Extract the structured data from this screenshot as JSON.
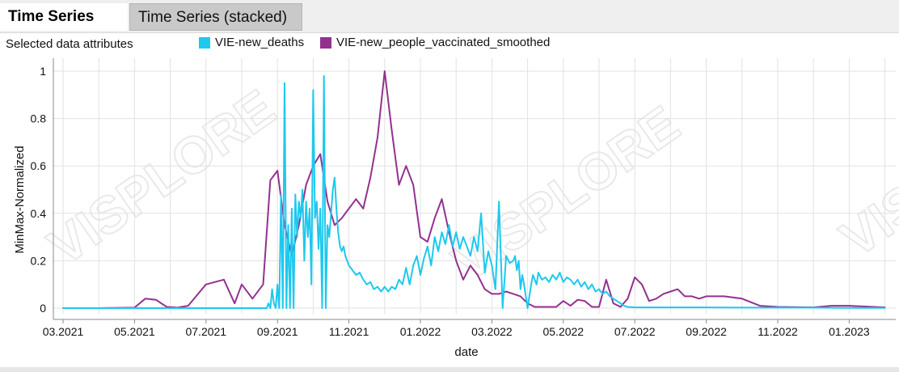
{
  "tabs": [
    {
      "label": "Time Series",
      "active": true
    },
    {
      "label": "Time Series (stacked)",
      "active": false
    }
  ],
  "selected_attributes_label": "Selected data attributes",
  "watermark": "VISPLORE",
  "colors": {
    "new_deaths": "#1ec8ee",
    "vaccinated": "#93318f",
    "grid": "#e2e2e2",
    "axis": "#8a8a8a"
  },
  "chart_data": {
    "type": "line",
    "xlabel": "date",
    "ylabel": "MinMax-Normalized",
    "ylim": [
      0,
      1
    ],
    "y_ticks": [
      "0",
      "0.2",
      "0.4",
      "0.6",
      "0.8",
      "1"
    ],
    "x_ticks": [
      "03.2021",
      "05.2021",
      "07.2021",
      "09.2021",
      "11.2021",
      "01.2022",
      "03.2022",
      "05.2022",
      "07.2022",
      "09.2022",
      "11.2022",
      "01.2023"
    ],
    "xlim_months": [
      0,
      23.5
    ],
    "grid": true,
    "legend_position": "top",
    "series": [
      {
        "name": "VIE-new_deaths",
        "color": "#1ec8ee",
        "x": [
          0,
          5.6,
          5.7,
          5.75,
          5.8,
          5.85,
          5.9,
          5.95,
          6.0,
          6.05,
          6.1,
          6.15,
          6.2,
          6.25,
          6.3,
          6.35,
          6.4,
          6.45,
          6.5,
          6.55,
          6.6,
          6.65,
          6.7,
          6.75,
          6.8,
          6.85,
          6.9,
          6.95,
          7.0,
          7.05,
          7.1,
          7.15,
          7.2,
          7.25,
          7.3,
          7.35,
          7.4,
          7.45,
          7.5,
          7.55,
          7.6,
          7.65,
          7.7,
          7.75,
          7.8,
          7.85,
          7.9,
          8.0,
          8.1,
          8.2,
          8.3,
          8.4,
          8.5,
          8.6,
          8.7,
          8.8,
          8.9,
          9.0,
          9.1,
          9.2,
          9.3,
          9.4,
          9.5,
          9.6,
          9.7,
          9.8,
          9.9,
          10.0,
          10.1,
          10.2,
          10.3,
          10.4,
          10.5,
          10.6,
          10.7,
          10.8,
          10.9,
          11.0,
          11.1,
          11.2,
          11.3,
          11.4,
          11.5,
          11.6,
          11.7,
          11.8,
          11.9,
          12.0,
          12.1,
          12.2,
          12.3,
          12.4,
          12.5,
          12.6,
          12.65,
          12.7,
          12.75,
          12.8,
          12.85,
          12.9,
          13.0,
          13.1,
          13.15,
          13.2,
          13.25,
          13.3,
          13.4,
          13.5,
          13.6,
          13.7,
          13.8,
          13.9,
          14.0,
          14.1,
          14.2,
          14.3,
          14.4,
          14.5,
          14.6,
          14.7,
          14.8,
          14.9,
          15.0,
          15.1,
          15.2,
          15.3,
          15.4,
          15.5,
          15.6,
          15.7,
          15.8,
          16.0,
          16.5,
          17,
          18,
          19,
          20,
          21,
          22,
          23
        ],
        "y": [
          0,
          0,
          0,
          0.02,
          0,
          0.08,
          0.02,
          0,
          0.1,
          0,
          0.48,
          0,
          0.95,
          0,
          0.35,
          0,
          0.42,
          0,
          0.48,
          0.3,
          0.45,
          0.38,
          0.5,
          0.2,
          0.45,
          0.3,
          0.42,
          0.1,
          0.92,
          0.38,
          0.45,
          0.25,
          0.42,
          0,
          0.98,
          0,
          0.35,
          0.3,
          0.4,
          0.5,
          0.55,
          0.42,
          0.32,
          0.26,
          0.24,
          0.26,
          0.22,
          0.18,
          0.16,
          0.14,
          0.15,
          0.12,
          0.1,
          0.11,
          0.08,
          0.09,
          0.07,
          0.09,
          0.07,
          0.09,
          0.08,
          0.12,
          0.1,
          0.17,
          0.1,
          0.18,
          0.22,
          0.14,
          0.21,
          0.26,
          0.18,
          0.3,
          0.24,
          0.32,
          0.27,
          0.35,
          0.26,
          0.32,
          0.25,
          0.3,
          0.26,
          0.22,
          0.3,
          0.24,
          0.4,
          0.15,
          0.24,
          0.18,
          0.08,
          0.45,
          0,
          0.22,
          0.19,
          0.2,
          0.22,
          0.16,
          0.2,
          0.08,
          0.14,
          0.1,
          0,
          0.1,
          0.14,
          0.12,
          0.1,
          0.15,
          0.12,
          0.13,
          0.11,
          0.14,
          0.12,
          0.15,
          0.11,
          0.13,
          0.12,
          0.1,
          0.12,
          0.09,
          0.11,
          0.08,
          0.1,
          0.07,
          0.08,
          0.06,
          0.07,
          0.05,
          0.04,
          0.03,
          0.02,
          0.01,
          0.005,
          0.003,
          0.003,
          0.003,
          0.003,
          0.002,
          0.002,
          0.002,
          0.001,
          0.001
        ]
      },
      {
        "name": "VIE-new_people_vaccinated_smoothed",
        "color": "#93318f",
        "x": [
          0,
          1,
          2,
          2.3,
          2.6,
          2.9,
          3.2,
          3.5,
          4,
          4.5,
          4.8,
          5.0,
          5.3,
          5.6,
          5.8,
          6.0,
          6.2,
          6.4,
          6.6,
          6.8,
          7.0,
          7.2,
          7.4,
          7.6,
          7.8,
          8.0,
          8.2,
          8.4,
          8.6,
          8.8,
          9.0,
          9.2,
          9.4,
          9.6,
          9.8,
          10.0,
          10.2,
          10.4,
          10.6,
          10.8,
          11.0,
          11.2,
          11.4,
          11.6,
          11.8,
          12.0,
          12.2,
          12.4,
          12.6,
          12.8,
          13.0,
          13.2,
          13.4,
          13.6,
          13.8,
          14.0,
          14.2,
          14.4,
          14.6,
          14.8,
          15.0,
          15.2,
          15.4,
          15.6,
          15.8,
          16.0,
          16.2,
          16.4,
          16.6,
          16.8,
          17.0,
          17.2,
          17.4,
          17.6,
          17.8,
          18.0,
          18.5,
          19,
          19.5,
          20,
          21,
          21.5,
          22,
          23
        ],
        "y": [
          0,
          0,
          0.002,
          0.04,
          0.035,
          0.005,
          0.002,
          0.01,
          0.1,
          0.12,
          0.02,
          0.1,
          0.04,
          0.1,
          0.54,
          0.58,
          0.35,
          0.22,
          0.35,
          0.52,
          0.6,
          0.65,
          0.45,
          0.35,
          0.38,
          0.42,
          0.46,
          0.42,
          0.55,
          0.72,
          1.0,
          0.75,
          0.52,
          0.6,
          0.52,
          0.3,
          0.28,
          0.38,
          0.46,
          0.32,
          0.2,
          0.12,
          0.18,
          0.14,
          0.08,
          0.06,
          0.06,
          0.07,
          0.06,
          0.05,
          0.02,
          0.005,
          0.005,
          0.005,
          0.005,
          0.03,
          0.01,
          0.035,
          0.03,
          0.005,
          0.005,
          0.12,
          0.02,
          0.005,
          0.04,
          0.13,
          0.1,
          0.03,
          0.04,
          0.06,
          0.07,
          0.08,
          0.05,
          0.05,
          0.04,
          0.05,
          0.05,
          0.04,
          0.01,
          0.005,
          0.003,
          0.01,
          0.01,
          0.003
        ]
      }
    ]
  }
}
